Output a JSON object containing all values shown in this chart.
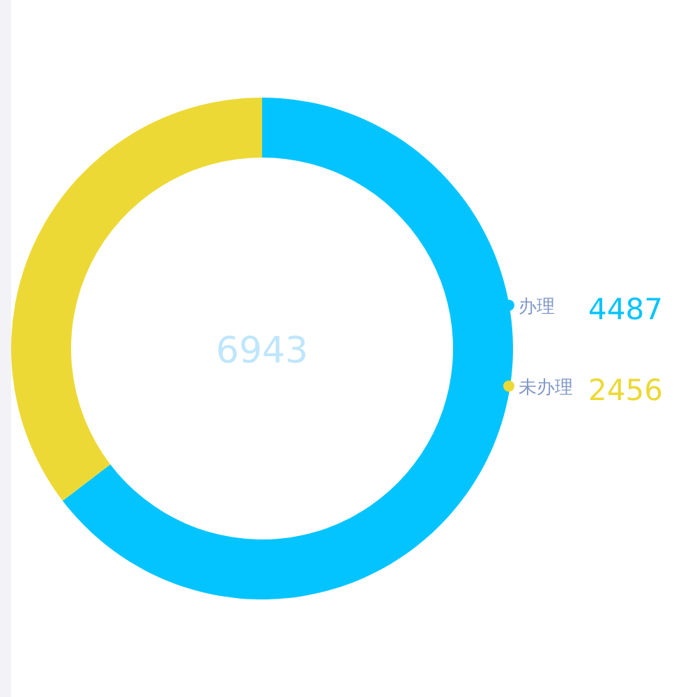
{
  "chart_data": {
    "type": "donut",
    "categories": [
      "办理",
      "未办理"
    ],
    "values": [
      4487,
      2456
    ],
    "colors": [
      "#04c4ff",
      "#ecd936"
    ],
    "annotations": [
      "6943"
    ],
    "data_labels": true,
    "legend": "right"
  }
}
